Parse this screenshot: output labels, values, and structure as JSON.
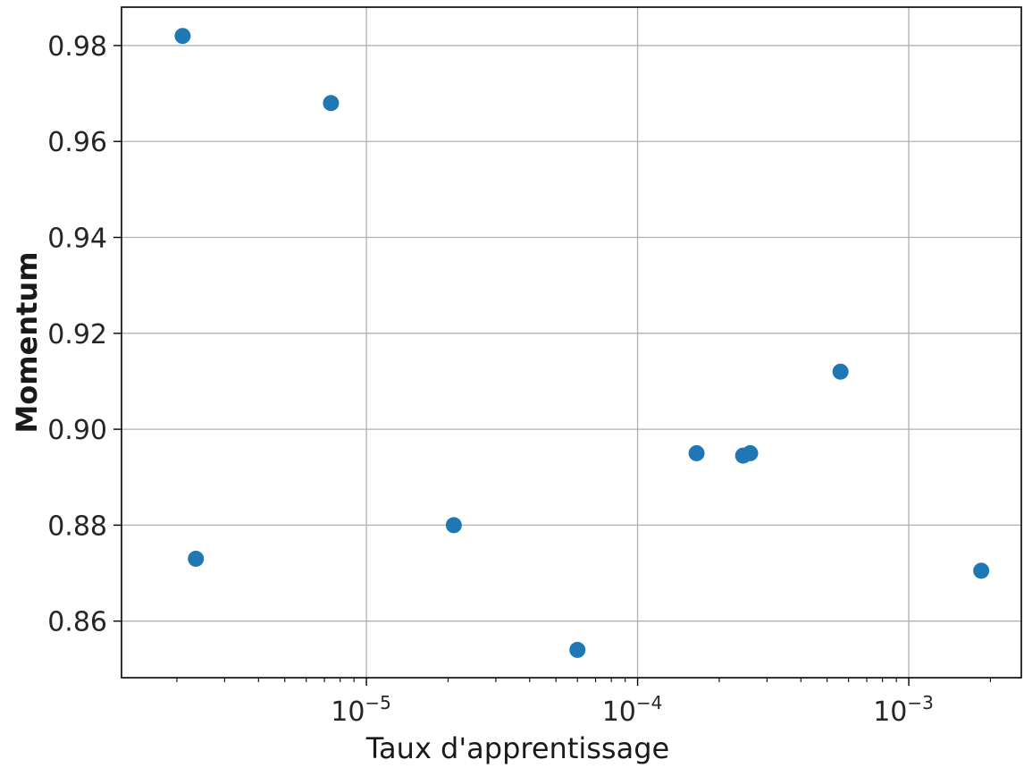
{
  "chart_data": {
    "type": "scatter",
    "title": "",
    "xlabel": "Taux d'apprentissage",
    "ylabel": "Momentum",
    "xscale": "log",
    "xlim": [
      1.25e-06,
      0.0026
    ],
    "ylim": [
      0.8482,
      0.988
    ],
    "x_ticks": [
      {
        "value": 1e-05,
        "base": "10",
        "exp": "−5"
      },
      {
        "value": 0.0001,
        "base": "10",
        "exp": "−4"
      },
      {
        "value": 0.001,
        "base": "10",
        "exp": "−3"
      }
    ],
    "y_ticks": [
      "0.86",
      "0.88",
      "0.90",
      "0.92",
      "0.94",
      "0.96",
      "0.98"
    ],
    "grid": true,
    "marker_color": "#1f77b4",
    "series": [
      {
        "points": [
          {
            "x": 2.1e-06,
            "y": 0.982
          },
          {
            "x": 7.4e-06,
            "y": 0.968
          },
          {
            "x": 2.35e-06,
            "y": 0.873
          },
          {
            "x": 2.1e-05,
            "y": 0.88
          },
          {
            "x": 6e-05,
            "y": 0.854
          },
          {
            "x": 0.000165,
            "y": 0.895
          },
          {
            "x": 0.000245,
            "y": 0.8945
          },
          {
            "x": 0.00026,
            "y": 0.895
          },
          {
            "x": 0.00056,
            "y": 0.912
          },
          {
            "x": 0.00185,
            "y": 0.8705
          }
        ]
      }
    ]
  }
}
